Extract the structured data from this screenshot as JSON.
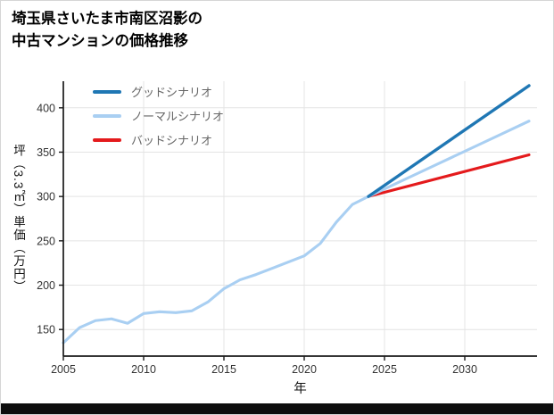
{
  "chart_data": {
    "type": "line",
    "title": "埼玉県さいたま市南区沼影の\n中古マンションの価格推移",
    "xlabel": "年",
    "ylabel": "坪（3.3㎡）単価（万円）",
    "xlim": [
      2005,
      2034.5
    ],
    "ylim": [
      120,
      430
    ],
    "xticks": [
      2005,
      2010,
      2015,
      2020,
      2025,
      2030
    ],
    "yticks": [
      150,
      200,
      250,
      300,
      350,
      400
    ],
    "grid": true,
    "legend_position": "top-left-inside",
    "colors": {
      "grid": "#e4e4e4",
      "axis": "#1a1a1a",
      "tick_label": "#333333",
      "axis_label": "#111111",
      "legend_label": "#666666",
      "background": "#ffffff"
    },
    "series": [
      {
        "name": "グッドシナリオ",
        "color": "#1f77b4",
        "width": 3.4,
        "x": [
          2024,
          2034
        ],
        "values": [
          300,
          425
        ]
      },
      {
        "name": "ノーマルシナリオ",
        "color": "#a9cff2",
        "width": 3.1,
        "x": [
          2005,
          2006,
          2007,
          2008,
          2009,
          2010,
          2011,
          2012,
          2013,
          2014,
          2015,
          2016,
          2017,
          2018,
          2019,
          2020,
          2021,
          2022,
          2023,
          2024,
          2026,
          2028,
          2030,
          2032,
          2034
        ],
        "values": [
          135,
          152,
          160,
          162,
          157,
          168,
          170,
          169,
          171,
          181,
          196,
          206,
          212,
          219,
          226,
          233,
          247,
          271,
          291,
          300,
          317,
          334,
          351,
          368,
          385
        ]
      },
      {
        "name": "バッドシナリオ",
        "color": "#e41a1c",
        "width": 3.1,
        "x": [
          2024,
          2034
        ],
        "values": [
          300,
          347
        ]
      }
    ]
  }
}
